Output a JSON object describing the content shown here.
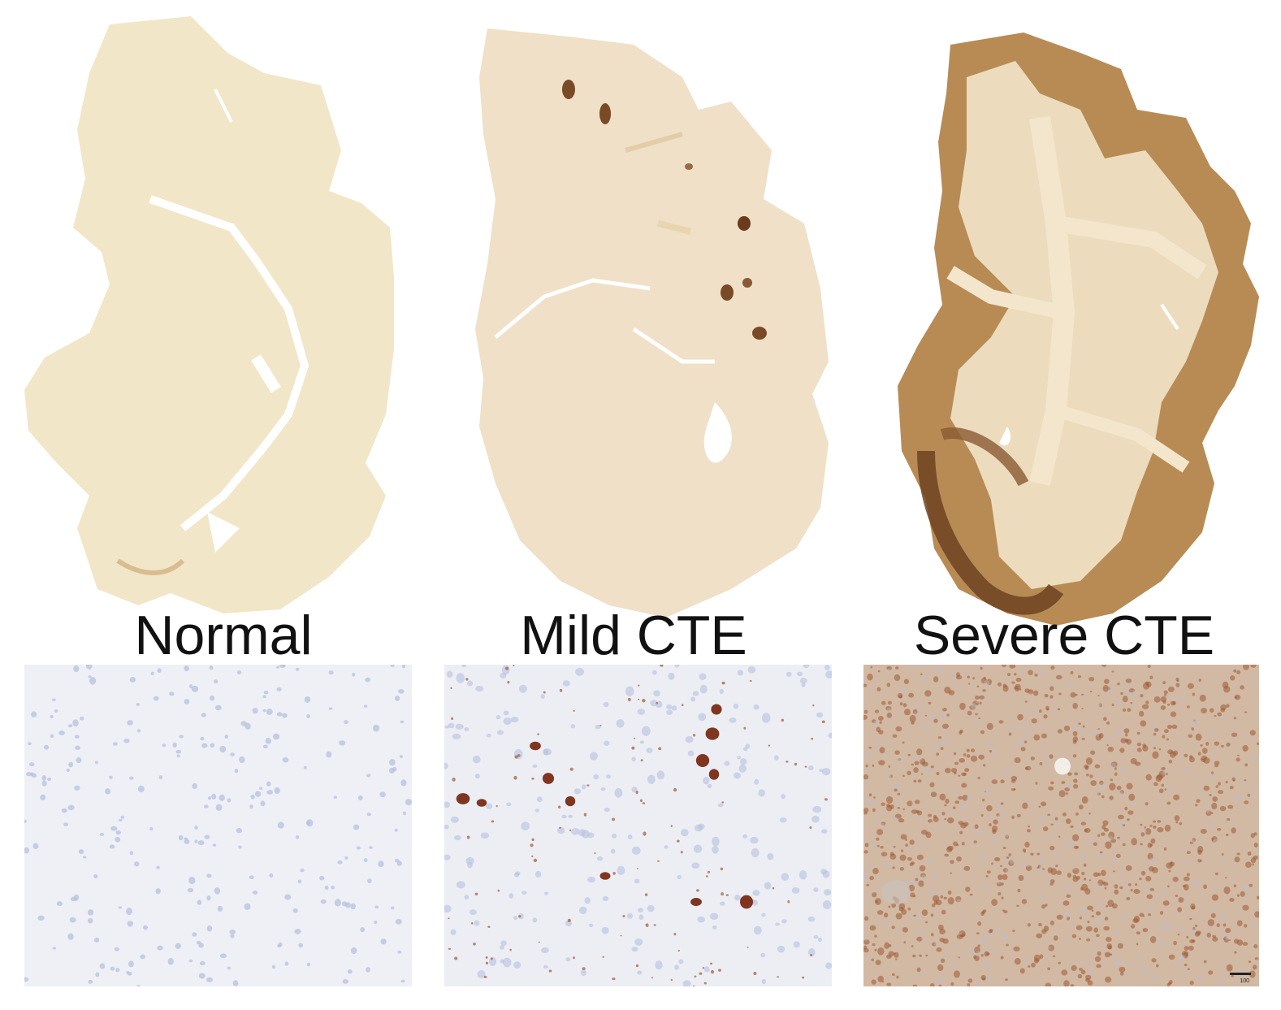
{
  "panels": [
    {
      "id": "normal",
      "label": "Normal",
      "stain_level": "none"
    },
    {
      "id": "mild",
      "label": "Mild CTE",
      "stain_level": "focal"
    },
    {
      "id": "severe",
      "label": "Severe CTE",
      "stain_level": "widespread"
    }
  ],
  "scale_bar": {
    "label": "100"
  },
  "colors": {
    "tissue_normal": "#f2e6c8",
    "tissue_mild": "#efe0c7",
    "tissue_severe_white": "#ecdcbd",
    "tissue_severe_cortex": "#b88b55",
    "tau_dark": "#7a2a14",
    "tau_brown": "#9c5a32",
    "nuclei_blue": "#b8c0dd",
    "micro_bg_normal": "#eef0f6",
    "micro_bg_mild": "#eceef4",
    "micro_bg_severe": "#d2b9a4"
  }
}
